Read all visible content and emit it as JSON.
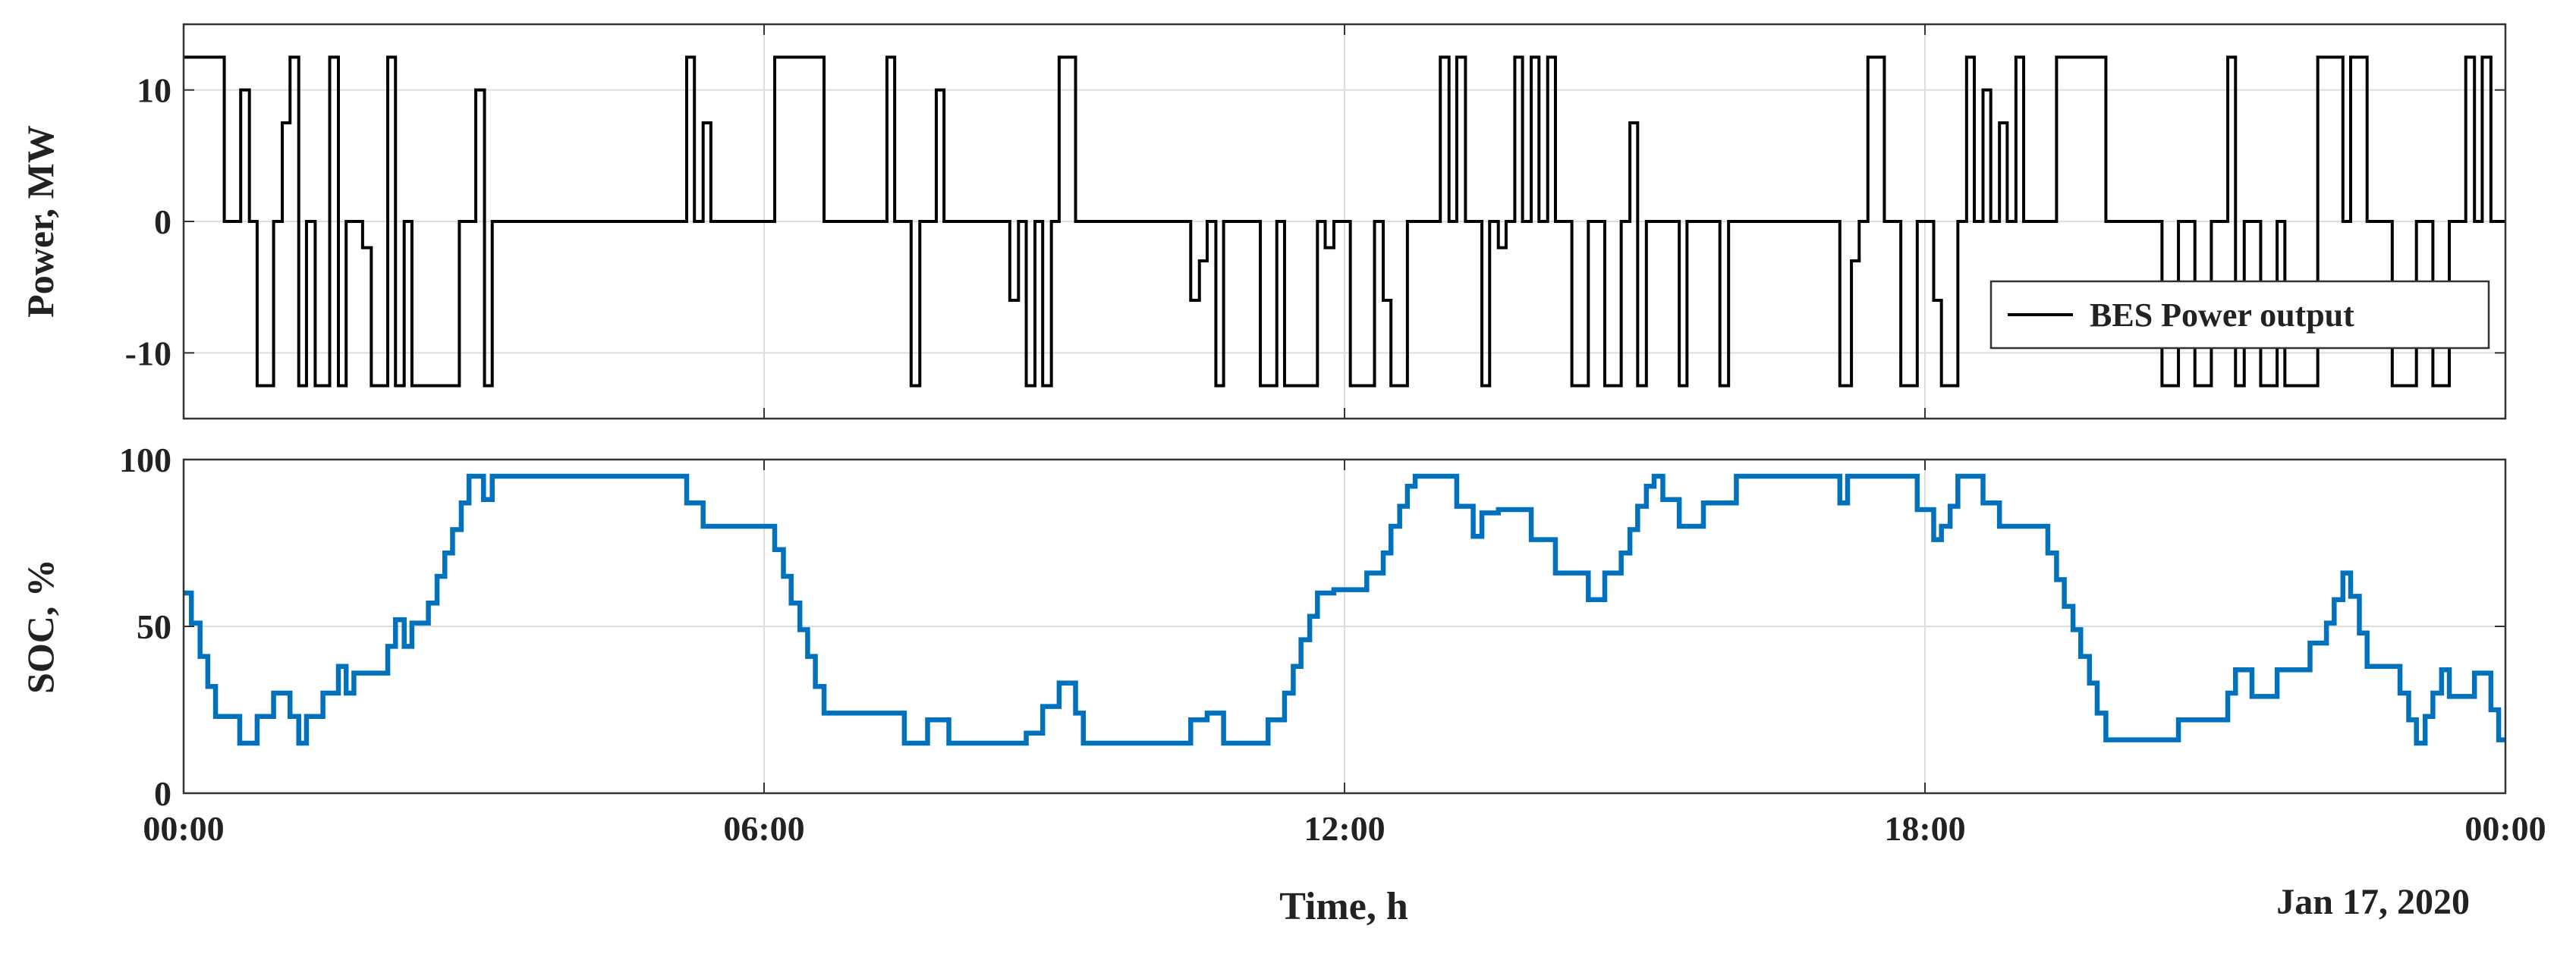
{
  "chart_data": [
    {
      "type": "line",
      "step": "post",
      "ylabel": "Power, MW",
      "ylim": [
        -15,
        15
      ],
      "yticks": [
        -10,
        0,
        10
      ],
      "xlim": [
        0,
        24
      ],
      "grid": true,
      "legend": "lower right",
      "series": [
        {
          "name": "BES Power output",
          "color": "#000000",
          "x": [
            0,
            0.42,
            0.59,
            0.68,
            0.76,
            0.93,
            1.02,
            1.1,
            1.19,
            1.27,
            1.36,
            1.51,
            1.6,
            1.68,
            1.85,
            1.94,
            2.11,
            2.19,
            2.28,
            2.36,
            2.85,
            3.02,
            3.11,
            3.19,
            5.2,
            5.28,
            5.37,
            5.45,
            6.11,
            6.62,
            7.27,
            7.35,
            7.52,
            7.61,
            7.78,
            7.86,
            8.54,
            8.63,
            8.71,
            8.8,
            8.88,
            8.97,
            9.05,
            9.22,
            10.41,
            10.5,
            10.58,
            10.67,
            10.75,
            11.13,
            11.3,
            11.38,
            11.72,
            11.8,
            11.89,
            12.06,
            12.31,
            12.4,
            12.48,
            12.65,
            12.99,
            13.08,
            13.16,
            13.25,
            13.42,
            13.5,
            13.59,
            13.67,
            13.76,
            13.84,
            13.93,
            14.01,
            14.1,
            14.18,
            14.35,
            14.52,
            14.69,
            14.86,
            14.95,
            15.03,
            15.12,
            15.46,
            15.54,
            15.88,
            15.97,
            17.12,
            17.24,
            17.32,
            17.41,
            17.58,
            17.75,
            17.92,
            18.09,
            18.17,
            18.34,
            18.43,
            18.51,
            18.6,
            18.68,
            18.77,
            18.85,
            18.94,
            19.02,
            19.36,
            19.87,
            20.45,
            20.62,
            20.79,
            20.96,
            21.13,
            21.21,
            21.3,
            21.47,
            21.64,
            21.72,
            22.06,
            22.32,
            22.4,
            22.57,
            22.83,
            23.08,
            23.25,
            23.42,
            23.59,
            23.68,
            23.76,
            23.85,
            24
          ],
          "values": [
            12.5,
            0,
            10,
            0,
            -12.5,
            0,
            7.5,
            12.5,
            -12.5,
            0,
            -12.5,
            12.5,
            -12.5,
            0,
            -2,
            -12.5,
            12.5,
            -12.5,
            0,
            -12.5,
            0,
            10,
            -12.5,
            0,
            12.5,
            0,
            7.5,
            0,
            12.5,
            0,
            12.5,
            0,
            -12.5,
            0,
            10,
            0,
            -6,
            0,
            -12.5,
            0,
            -12.5,
            0,
            12.5,
            0,
            -6,
            -3,
            0,
            -12.5,
            0,
            -12.5,
            0,
            -12.5,
            0,
            -2,
            0,
            -12.5,
            0,
            -6,
            -12.5,
            0,
            12.5,
            0,
            12.5,
            0,
            -12.5,
            0,
            -2,
            0,
            12.5,
            0,
            12.5,
            0,
            12.5,
            0,
            -12.5,
            0,
            -12.5,
            0,
            7.5,
            -12.5,
            0,
            -12.5,
            0,
            -12.5,
            0,
            -12.5,
            -3,
            0,
            12.5,
            0,
            -12.5,
            0,
            -6,
            -12.5,
            0,
            12.5,
            0,
            10,
            0,
            7.5,
            0,
            12.5,
            0,
            12.5,
            0,
            -12.5,
            0,
            -12.5,
            0,
            12.5,
            -12.5,
            0,
            -12.5,
            0,
            -12.5,
            12.5,
            0,
            12.5,
            0,
            -12.5,
            0,
            -12.5,
            0,
            12.5,
            0,
            12.5,
            0,
            0
          ]
        }
      ]
    },
    {
      "type": "line",
      "step": "post",
      "ylabel": "SOC, %",
      "xlabel": "Time, h",
      "annotation": "Jan 17, 2020",
      "ylim": [
        0,
        100
      ],
      "yticks": [
        0,
        50,
        100
      ],
      "xlim": [
        0,
        24
      ],
      "xticks": [
        {
          "value": 0,
          "label": "00:00"
        },
        {
          "value": 6,
          "label": "06:00"
        },
        {
          "value": 12,
          "label": "12:00"
        },
        {
          "value": 18,
          "label": "18:00"
        },
        {
          "value": 24,
          "label": "00:00"
        }
      ],
      "grid": true,
      "series": [
        {
          "color": "#0072bd",
          "x": [
            0,
            0.08,
            0.17,
            0.25,
            0.33,
            0.58,
            0.76,
            0.93,
            1.1,
            1.19,
            1.27,
            1.44,
            1.6,
            1.68,
            1.76,
            2.11,
            2.19,
            2.28,
            2.36,
            2.53,
            2.62,
            2.7,
            2.78,
            2.87,
            2.95,
            3.1,
            3.19,
            5.2,
            5.37,
            6.11,
            6.2,
            6.28,
            6.37,
            6.45,
            6.53,
            6.62,
            7.45,
            7.69,
            7.91,
            8.71,
            8.88,
            9.05,
            9.22,
            9.3,
            10.41,
            10.58,
            10.75,
            11.21,
            11.38,
            11.47,
            11.55,
            11.64,
            11.72,
            11.89,
            12.23,
            12.4,
            12.48,
            12.57,
            12.65,
            12.73,
            13.16,
            13.33,
            13.42,
            13.59,
            13.93,
            14.18,
            14.52,
            14.69,
            14.86,
            14.95,
            15.03,
            15.12,
            15.2,
            15.29,
            15.46,
            15.71,
            16.05,
            17.12,
            17.2,
            17.92,
            18.09,
            18.17,
            18.26,
            18.34,
            18.6,
            18.77,
            19.27,
            19.36,
            19.44,
            19.53,
            19.61,
            19.7,
            19.78,
            19.87,
            20.62,
            21.13,
            21.21,
            21.38,
            21.64,
            21.98,
            22.15,
            22.23,
            22.32,
            22.4,
            22.49,
            22.57,
            22.91,
            23.0,
            23.08,
            23.17,
            23.25,
            23.34,
            23.42,
            23.68,
            23.85,
            23.93,
            24
          ],
          "values": [
            60,
            51,
            41,
            32,
            23,
            15,
            23,
            30,
            23,
            15,
            23,
            30,
            38,
            30,
            36,
            44,
            52,
            44,
            51,
            57,
            65,
            72,
            79,
            87,
            95,
            88,
            95,
            87,
            80,
            73,
            65,
            57,
            49,
            41,
            32,
            24,
            15,
            22,
            15,
            18,
            26,
            33,
            24,
            15,
            22,
            24,
            15,
            22,
            30,
            38,
            46,
            53,
            60,
            61,
            66,
            72,
            80,
            86,
            92,
            95,
            86,
            77,
            84,
            85,
            76,
            66,
            58,
            66,
            72,
            79,
            86,
            92,
            95,
            88,
            80,
            87,
            95,
            87,
            95,
            85,
            76,
            80,
            86,
            95,
            87,
            80,
            72,
            64,
            56,
            49,
            41,
            33,
            24,
            16,
            22,
            30,
            37,
            29,
            37,
            45,
            51,
            58,
            66,
            59,
            48,
            38,
            30,
            22,
            15,
            23,
            30,
            37,
            29,
            36,
            25,
            16,
            16
          ]
        }
      ]
    }
  ]
}
